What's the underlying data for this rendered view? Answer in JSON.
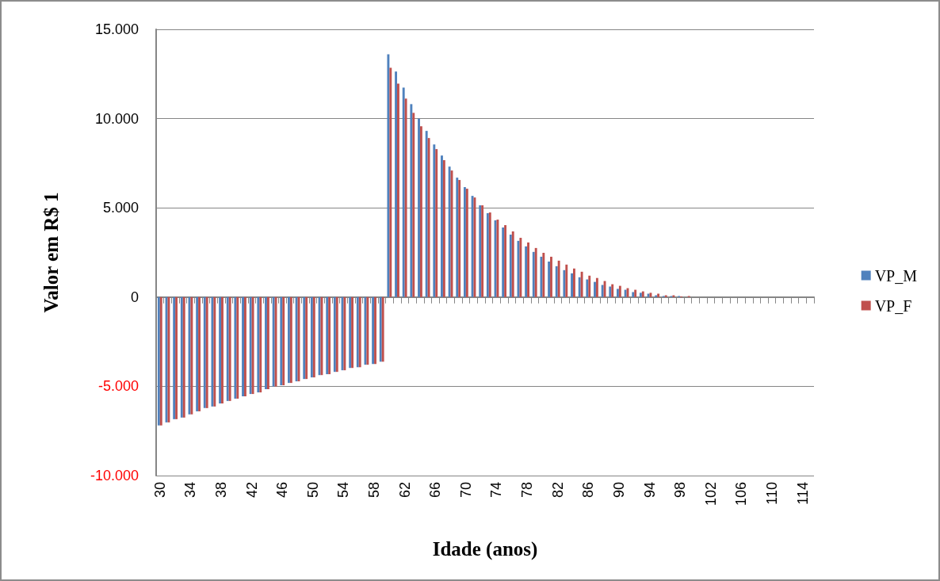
{
  "chart_data": {
    "type": "bar",
    "xlabel": "Idade (anos)",
    "ylabel": "Valor em R$ 1",
    "categories": [
      "30",
      null,
      null,
      null,
      "34",
      null,
      null,
      null,
      "38",
      null,
      null,
      null,
      "42",
      null,
      null,
      null,
      "46",
      null,
      null,
      null,
      "50",
      null,
      null,
      null,
      "54",
      null,
      null,
      null,
      "58",
      null,
      null,
      null,
      "62",
      null,
      null,
      null,
      "66",
      null,
      null,
      null,
      "70",
      null,
      null,
      null,
      "74",
      null,
      null,
      null,
      "78",
      null,
      null,
      null,
      "82",
      null,
      null,
      null,
      "86",
      null,
      null,
      null,
      "90",
      null,
      null,
      null,
      "94",
      null,
      null,
      null,
      "98",
      null,
      null,
      null,
      "102",
      null,
      null,
      null,
      "106",
      null,
      null,
      null,
      "110",
      null,
      null,
      null,
      "114",
      null
    ],
    "series": [
      {
        "name": "VP_M",
        "color": "#4f81bd",
        "values": [
          -7190,
          -7020,
          -6840,
          -6750,
          -6570,
          -6400,
          -6220,
          -6130,
          -5960,
          -5820,
          -5690,
          -5560,
          -5430,
          -5340,
          -5160,
          -5010,
          -4940,
          -4810,
          -4720,
          -4590,
          -4500,
          -4370,
          -4320,
          -4190,
          -4100,
          -3970,
          -3930,
          -3790,
          -3750,
          -3620,
          13600,
          12630,
          11740,
          10810,
          10000,
          9310,
          8550,
          7930,
          7310,
          6690,
          6160,
          5670,
          5140,
          4700,
          4300,
          3900,
          3500,
          3150,
          2840,
          2530,
          2260,
          1990,
          1730,
          1510,
          1330,
          1110,
          990,
          850,
          680,
          590,
          460,
          410,
          280,
          240,
          190,
          100,
          60,
          60,
          60,
          null,
          0,
          0,
          0,
          0,
          0,
          0,
          0,
          0,
          0,
          0,
          0,
          0,
          0,
          0,
          0,
          0
        ]
      },
      {
        "name": "VP_F",
        "color": "#c0504d",
        "values": [
          -7190,
          -7020,
          -6840,
          -6750,
          -6570,
          -6400,
          -6220,
          -6130,
          -5960,
          -5820,
          -5690,
          -5560,
          -5430,
          -5340,
          -5160,
          -5010,
          -4940,
          -4810,
          -4720,
          -4590,
          -4500,
          -4370,
          -4320,
          -4190,
          -4100,
          -3970,
          -3930,
          -3790,
          -3750,
          -3620,
          12850,
          11960,
          11120,
          10320,
          9570,
          8910,
          8290,
          7670,
          7090,
          6560,
          6070,
          5580,
          5140,
          4740,
          4340,
          4030,
          3680,
          3320,
          3060,
          2750,
          2480,
          2260,
          2040,
          1820,
          1600,
          1420,
          1200,
          1070,
          900,
          720,
          630,
          500,
          410,
          320,
          240,
          190,
          100,
          100,
          40,
          60,
          0,
          0,
          0,
          0,
          0,
          0,
          0,
          0,
          0,
          0,
          0,
          0,
          0,
          0,
          0,
          0
        ]
      }
    ],
    "ylim": [
      -10000,
      15000
    ],
    "yticks": [
      {
        "value": -10000,
        "label": "-10.000"
      },
      {
        "value": -5000,
        "label": "-5.000"
      },
      {
        "value": 0,
        "label": "0"
      },
      {
        "value": 5000,
        "label": "5.000"
      },
      {
        "value": 10000,
        "label": "10.000"
      },
      {
        "value": 15000,
        "label": "15.000"
      }
    ],
    "grid": "y",
    "legend": "right"
  }
}
